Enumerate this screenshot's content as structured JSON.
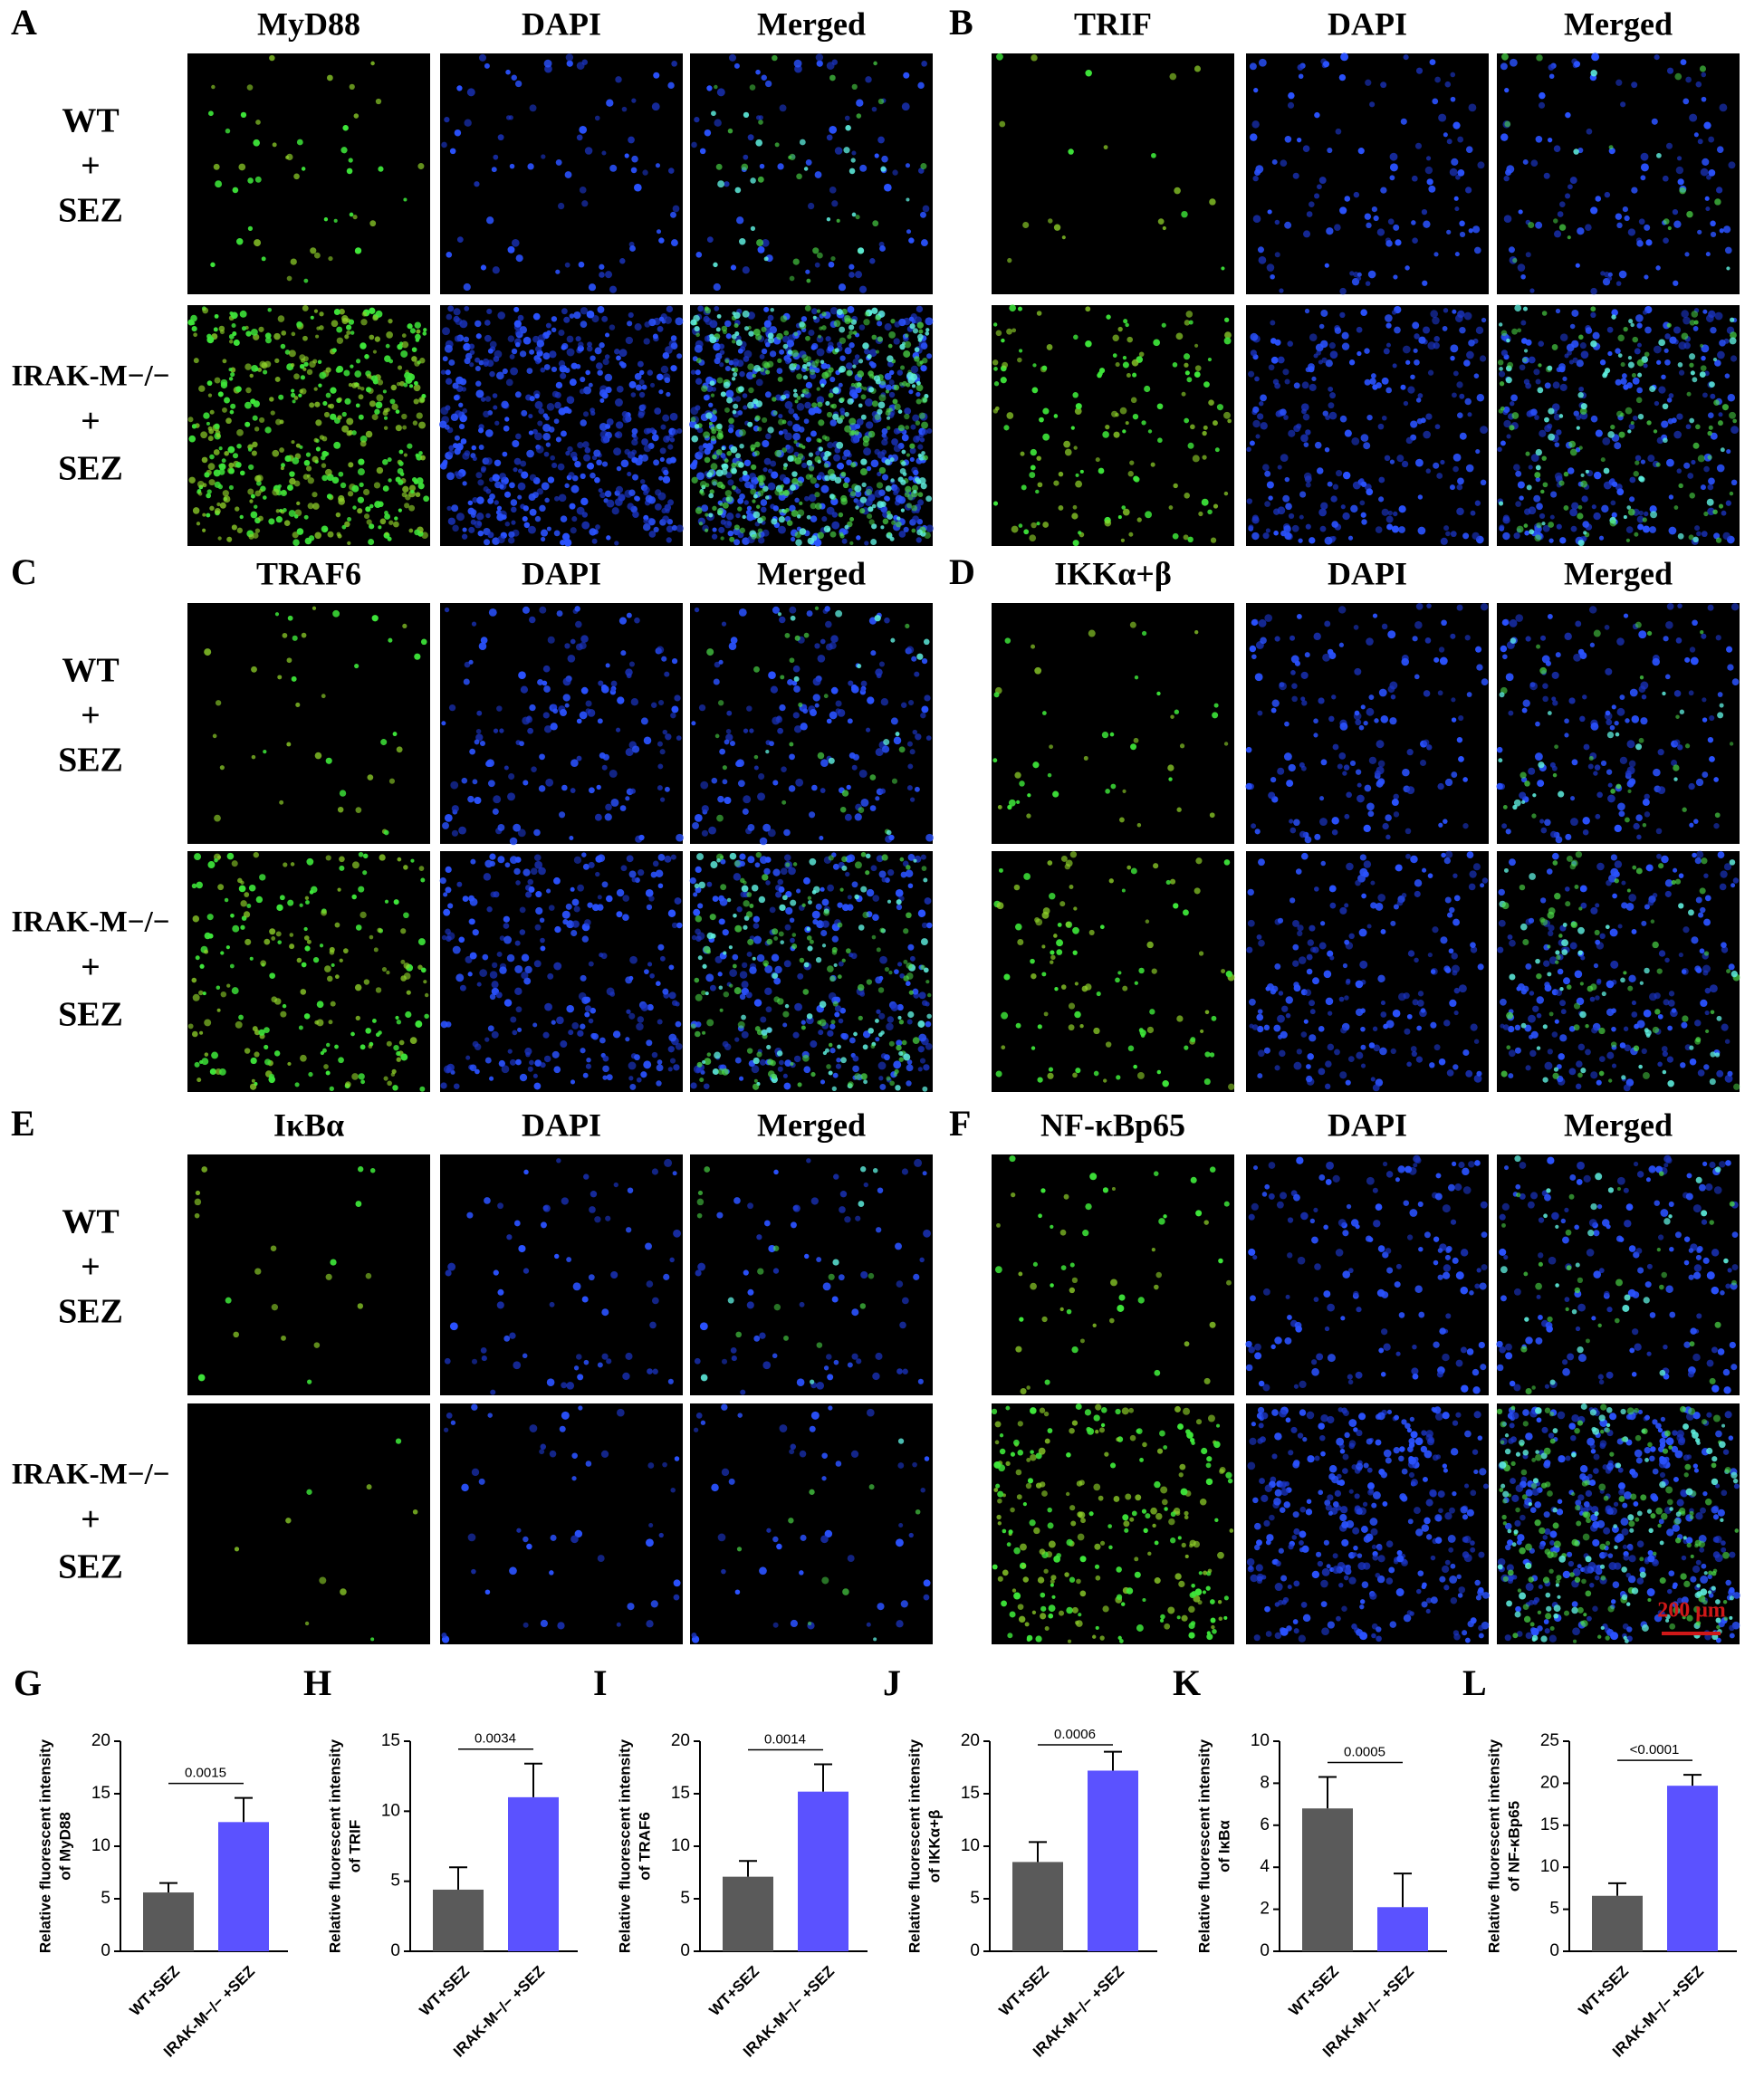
{
  "panels": [
    {
      "letter": "A",
      "headers": [
        "MyD88",
        "DAPI",
        "Merged"
      ],
      "rows": [
        [
          "WT",
          "+",
          "SEZ"
        ],
        [
          "IRAK-M−/−",
          "+",
          "SEZ"
        ]
      ]
    },
    {
      "letter": "B",
      "headers": [
        "TRIF",
        "DAPI",
        "Merged"
      ]
    },
    {
      "letter": "C",
      "headers": [
        "TRAF6",
        "DAPI",
        "Merged"
      ],
      "rows": [
        [
          "WT",
          "+",
          "SEZ"
        ],
        [
          "IRAK-M−/−",
          "+",
          "SEZ"
        ]
      ]
    },
    {
      "letter": "D",
      "headers": [
        "IKKα+β",
        "DAPI",
        "Merged"
      ]
    },
    {
      "letter": "E",
      "headers": [
        "IκBα",
        "DAPI",
        "Merged"
      ],
      "rows": [
        [
          "WT",
          "+",
          "SEZ"
        ],
        [
          "IRAK-M−/−",
          "+",
          "SEZ"
        ]
      ]
    },
    {
      "letter": "F",
      "headers": [
        "NF-κBp65",
        "DAPI",
        "Merged"
      ],
      "scale_bar": "200 μm"
    }
  ],
  "chart_data": [
    {
      "type": "bar",
      "letter": "G",
      "ylabel": [
        "Relative fluorescent intensity",
        "of MyD88"
      ],
      "categories": [
        "WT+SEZ",
        "IRAK-M−/− +SEZ"
      ],
      "values": [
        5.6,
        12.3
      ],
      "errors": [
        0.9,
        2.3
      ],
      "colors": [
        "#5a5a5a",
        "#5b52ff"
      ],
      "ylim": [
        0,
        20
      ],
      "yticks": [
        0,
        5,
        10,
        15,
        20
      ],
      "annotation": "0.0015"
    },
    {
      "type": "bar",
      "letter": "H",
      "ylabel": [
        "Relative fluorescent intensity",
        "of TRIF"
      ],
      "categories": [
        "WT+SEZ",
        "IRAK-M−/− +SEZ"
      ],
      "values": [
        4.4,
        11.0
      ],
      "errors": [
        1.6,
        2.4
      ],
      "colors": [
        "#5a5a5a",
        "#5b52ff"
      ],
      "ylim": [
        0,
        15
      ],
      "yticks": [
        0,
        5,
        10,
        15
      ],
      "annotation": "0.0034"
    },
    {
      "type": "bar",
      "letter": "I",
      "ylabel": [
        "Relative fluorescent intensity",
        "of TRAF6"
      ],
      "categories": [
        "WT+SEZ",
        "IRAK-M−/− +SEZ"
      ],
      "values": [
        7.1,
        15.2
      ],
      "errors": [
        1.5,
        2.6
      ],
      "colors": [
        "#5a5a5a",
        "#5b52ff"
      ],
      "ylim": [
        0,
        20
      ],
      "yticks": [
        0,
        5,
        10,
        15,
        20
      ],
      "annotation": "0.0014"
    },
    {
      "type": "bar",
      "letter": "J",
      "ylabel": [
        "Relative fluorescent intensity",
        "of IKKα+β"
      ],
      "categories": [
        "WT+SEZ",
        "IRAK-M−/− +SEZ"
      ],
      "values": [
        8.5,
        17.2
      ],
      "errors": [
        1.9,
        1.8
      ],
      "colors": [
        "#5a5a5a",
        "#5b52ff"
      ],
      "ylim": [
        0,
        20
      ],
      "yticks": [
        0,
        5,
        10,
        15,
        20
      ],
      "annotation": "0.0006"
    },
    {
      "type": "bar",
      "letter": "K",
      "ylabel": [
        "Relative fluorescent intensity",
        "of IκBα"
      ],
      "categories": [
        "WT+SEZ",
        "IRAK-M−/− +SEZ"
      ],
      "values": [
        6.8,
        2.1
      ],
      "errors": [
        1.5,
        1.6
      ],
      "colors": [
        "#5a5a5a",
        "#5b52ff"
      ],
      "ylim": [
        0,
        10
      ],
      "yticks": [
        0,
        2,
        4,
        6,
        8,
        10
      ],
      "annotation": "0.0005"
    },
    {
      "type": "bar",
      "letter": "L",
      "ylabel": [
        "Relative fluorescent intensity",
        "of NF-κBp65"
      ],
      "categories": [
        "WT+SEZ",
        "IRAK-M−/− +SEZ"
      ],
      "values": [
        6.6,
        19.7
      ],
      "errors": [
        1.5,
        1.3
      ],
      "colors": [
        "#5a5a5a",
        "#5b52ff"
      ],
      "ylim": [
        0,
        25
      ],
      "yticks": [
        0,
        5,
        10,
        15,
        20,
        25
      ],
      "annotation": "<0.0001"
    }
  ]
}
